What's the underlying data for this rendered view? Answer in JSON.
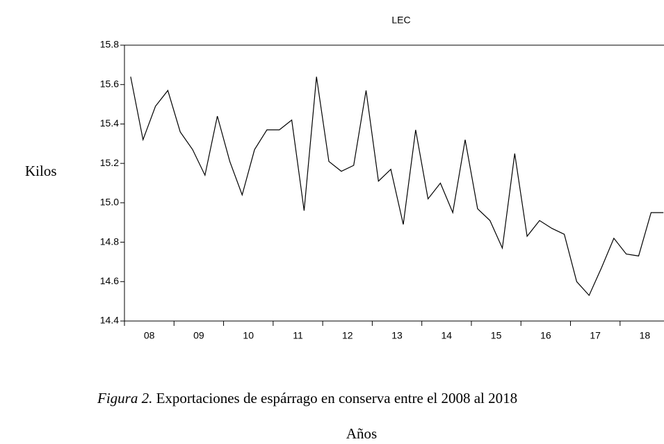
{
  "chart_data": {
    "type": "line",
    "title": "LEC",
    "y_label": "Kilos",
    "x_label": "Años",
    "caption_prefix": "Figura 2.",
    "caption": "Exportaciones de espárrago en conserva entre el 2008 al 2018",
    "categories": [
      "08",
      null,
      null,
      null,
      "09",
      null,
      null,
      null,
      "10",
      null,
      null,
      null,
      "11",
      null,
      null,
      null,
      "12",
      null,
      null,
      null,
      "13",
      null,
      null,
      null,
      "14",
      null,
      null,
      null,
      "15",
      null,
      null,
      null,
      "16",
      null,
      null,
      null,
      "17",
      null,
      null,
      null,
      "18",
      null,
      null,
      null
    ],
    "values": [
      15.64,
      15.32,
      15.49,
      15.57,
      15.36,
      15.27,
      15.14,
      15.44,
      15.21,
      15.04,
      15.27,
      15.37,
      15.37,
      15.42,
      14.96,
      15.64,
      15.21,
      15.16,
      15.19,
      15.57,
      15.11,
      15.17,
      14.89,
      15.37,
      15.02,
      15.1,
      14.95,
      15.32,
      14.97,
      14.91,
      14.77,
      15.25,
      14.83,
      14.91,
      14.87,
      14.84,
      14.6,
      14.53,
      14.67,
      14.82,
      14.74,
      14.73,
      14.95,
      14.95
    ],
    "color": "#000000",
    "ylim": [
      14.4,
      15.8
    ],
    "yticks": [
      14.4,
      14.6,
      14.8,
      {
        "value": 15,
        "label": "15.0"
      },
      15.2,
      15.4,
      15.6,
      15.8
    ]
  }
}
